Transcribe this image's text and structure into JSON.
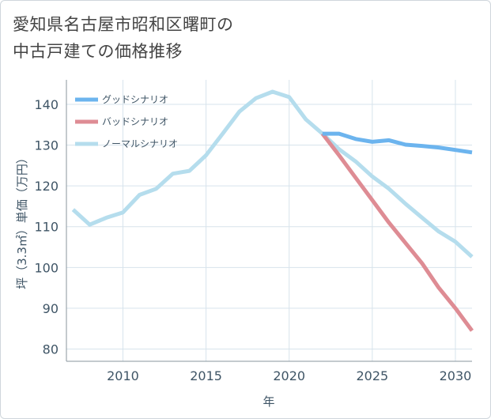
{
  "chart_data": {
    "type": "line",
    "title": "愛知県名古屋市昭和区曙町の中古戸建ての価格推移",
    "title_lines": [
      "愛知県名古屋市昭和区曙町の",
      "中古戸建ての価格推移"
    ],
    "xlabel": "年",
    "ylabel": "坪（3.3㎡）単価（万円）",
    "xlim": [
      2006.6,
      2031
    ],
    "ylim": [
      77,
      146
    ],
    "x_ticks": [
      2010,
      2015,
      2020,
      2025,
      2030
    ],
    "y_ticks": [
      80,
      90,
      100,
      110,
      120,
      130,
      140
    ],
    "x_tick_labels": [
      "2010",
      "2015",
      "2020",
      "2025",
      "2030"
    ],
    "y_tick_labels": [
      "80",
      "90",
      "100",
      "110",
      "120",
      "130",
      "140"
    ],
    "grid": true,
    "legend_position": "top-left",
    "series": [
      {
        "name": "グッドシナリオ",
        "color": "#6cb4ee",
        "x": [
          2022,
          2023,
          2024,
          2025,
          2026,
          2027,
          2028,
          2029,
          2030,
          2031
        ],
        "values": [
          132.8,
          132.8,
          131.5,
          130.8,
          131.2,
          130.1,
          129.8,
          129.4,
          128.8,
          128.2
        ]
      },
      {
        "name": "バッドシナリオ",
        "color": "#de8c94",
        "x": [
          2022,
          2023,
          2024,
          2025,
          2026,
          2027,
          2028,
          2029,
          2030,
          2031
        ],
        "values": [
          132.8,
          127.5,
          122.0,
          116.5,
          111.0,
          106.0,
          101.0,
          95.0,
          90.0,
          84.5
        ]
      },
      {
        "name": "ノーマルシナリオ",
        "color": "#b5dded",
        "x": [
          2007,
          2008,
          2009,
          2010,
          2011,
          2012,
          2013,
          2014,
          2015,
          2016,
          2017,
          2018,
          2019,
          2020,
          2021,
          2022,
          2023,
          2024,
          2025,
          2026,
          2027,
          2028,
          2029,
          2030,
          2031
        ],
        "values": [
          114.2,
          110.5,
          112.2,
          113.5,
          117.8,
          119.3,
          123.0,
          123.7,
          127.5,
          132.8,
          138.2,
          141.5,
          143.1,
          141.8,
          136.3,
          132.8,
          129.0,
          126.0,
          122.3,
          119.3,
          115.6,
          112.2,
          108.8,
          106.3,
          102.6
        ]
      }
    ]
  }
}
